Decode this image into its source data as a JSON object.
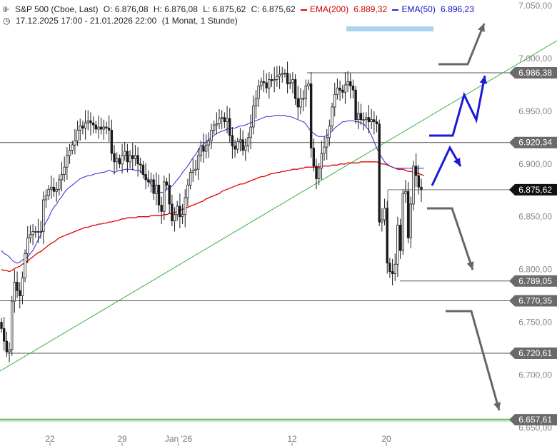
{
  "header": {
    "symbol": "S&P 500 (Cboe, Last)",
    "open": "O: 6.876,08",
    "high": "H: 6.876,08",
    "low": "L: 6.875,62",
    "close": "C: 6.875,62",
    "ema200_label": "EMA(200)",
    "ema200_value": "6.889,32",
    "ema50_label": "EMA(50)",
    "ema50_value": "6.896,23",
    "range": "17.12.2025 17:00 - 21.01.2026 22:00",
    "interval": "(1 Monat, 1 Stunde)"
  },
  "colors": {
    "candle": "#1a1a1a",
    "ema200": "#e00000",
    "ema50": "#2a2ad4",
    "trendline": "#3cb043",
    "level_line": "#555555",
    "arrow_blue": "#1a1ad8",
    "arrow_gray": "#666666",
    "tag_bg": "#6a6a6a",
    "current_tag_bg": "#111111",
    "support_green": "#4caf50",
    "marker_lightblue": "#a8d4f0"
  },
  "chart_data": {
    "type": "candlestick",
    "x_tick_labels": [
      "22",
      "29",
      "Jan '26",
      "12",
      "20"
    ],
    "y_ticks": [
      6650,
      6700,
      6750,
      6800,
      6850,
      6900,
      6950,
      7000,
      7050
    ],
    "y_tick_labels": [
      "6.650,00",
      "6.700,00",
      "6.750,00",
      "6.800,00",
      "6.850,00",
      "6.900,00",
      "6.950,00",
      "7.000,00",
      "7.050,00"
    ],
    "ylim": [
      6645,
      7058
    ],
    "levels": [
      {
        "value": 6986.38,
        "label": "6.986,38"
      },
      {
        "value": 6920.34,
        "label": "6.920,34"
      },
      {
        "value": 6789.05,
        "label": "6.789,05"
      },
      {
        "value": 6770.35,
        "label": "6.770,35"
      },
      {
        "value": 6720.61,
        "label": "6.720,61"
      },
      {
        "value": 6657.61,
        "label": "6.657,61"
      }
    ],
    "current_price": {
      "value": 6875.62,
      "label": "6.875,62"
    },
    "closes": [
      6744,
      6732,
      6722,
      6724,
      6770,
      6788,
      6780,
      6775,
      6792,
      6815,
      6830,
      6833,
      6836,
      6836,
      6836,
      6836,
      6866,
      6870,
      6876,
      6878,
      6874,
      6876,
      6885,
      6890,
      6897,
      6908,
      6913,
      6918,
      6922,
      6932,
      6936,
      6934,
      6939,
      6941,
      6939,
      6937,
      6933,
      6935,
      6933,
      6935,
      6934,
      6932,
      6910,
      6902,
      6905,
      6900,
      6908,
      6912,
      6902,
      6908,
      6905,
      6908,
      6900,
      6899,
      6890,
      6885,
      6883,
      6885,
      6872,
      6880,
      6861,
      6855,
      6883,
      6880,
      6862,
      6846,
      6852,
      6860,
      6850,
      6852,
      6868,
      6880,
      6892,
      6894,
      6895,
      6908,
      6917,
      6912,
      6918,
      6922,
      6932,
      6937,
      6938,
      6943,
      6944,
      6940,
      6943,
      6927,
      6917,
      6914,
      6921,
      6923,
      6913,
      6917,
      6925,
      6935,
      6955,
      6962,
      6974,
      6978,
      6977,
      6972,
      6980,
      6979,
      6980,
      6983,
      6985,
      6986,
      6986,
      6976,
      6977,
      6980,
      6962,
      6954,
      6962,
      6962,
      6974,
      6976,
      6915,
      6898,
      6886,
      6896,
      6910,
      6916,
      6925,
      6936,
      6954,
      6966,
      6972,
      6970,
      6968,
      6975,
      6978,
      6974,
      6970,
      6942,
      6948,
      6942,
      6942,
      6944,
      6940,
      6942,
      6940,
      6938,
      6845,
      6847,
      6858,
      6806,
      6798,
      6796,
      6805,
      6842,
      6818,
      6872,
      6874,
      6830,
      6862,
      6898,
      6889,
      6878,
      6876
    ],
    "ema200": [
      6800,
      6799,
      6799,
      6798,
      6799,
      6801,
      6802,
      6803,
      6805,
      6806,
      6808,
      6810,
      6812,
      6814,
      6816,
      6817,
      6819,
      6821,
      6823,
      6825,
      6826,
      6828,
      6830,
      6831,
      6832,
      6833,
      6834,
      6835,
      6836,
      6837,
      6838,
      6839,
      6840,
      6840,
      6841,
      6842,
      6842,
      6843,
      6843,
      6844,
      6844,
      6845,
      6845,
      6846,
      6846,
      6847,
      6848,
      6848,
      6849,
      6849,
      6849,
      6849,
      6850,
      6850,
      6850,
      6850,
      6850,
      6851,
      6851,
      6851,
      6851,
      6851,
      6852,
      6852,
      6853,
      6853,
      6854,
      6855,
      6856,
      6857,
      6858,
      6859,
      6860,
      6861,
      6862,
      6863,
      6864,
      6865,
      6867,
      6868,
      6869,
      6870,
      6871,
      6872,
      6874,
      6875,
      6876,
      6877,
      6878,
      6879,
      6880,
      6881,
      6881,
      6882,
      6883,
      6884,
      6885,
      6886,
      6887,
      6888,
      6888,
      6889,
      6890,
      6891,
      6891,
      6892,
      6892,
      6893,
      6893,
      6894,
      6894,
      6895,
      6895,
      6895,
      6896,
      6896,
      6897,
      6897,
      6897,
      6897,
      6897,
      6897,
      6898,
      6898,
      6898,
      6898,
      6899,
      6899,
      6899,
      6900,
      6900,
      6900,
      6901,
      6901,
      6901,
      6901,
      6901,
      6902,
      6902,
      6902,
      6902,
      6902,
      6902,
      6902,
      6901,
      6900,
      6900,
      6899,
      6898,
      6897,
      6896,
      6895,
      6895,
      6895,
      6894,
      6893,
      6893,
      6892,
      6892,
      6891,
      6890,
      6889
    ],
    "ema50": [
      6818,
      6815,
      6814,
      6812,
      6809,
      6807,
      6806,
      6807,
      6809,
      6810,
      6812,
      6815,
      6818,
      6823,
      6828,
      6833,
      6840,
      6845,
      6849,
      6855,
      6859,
      6862,
      6866,
      6869,
      6873,
      6876,
      6878,
      6880,
      6882,
      6884,
      6886,
      6887,
      6888,
      6889,
      6889,
      6890,
      6891,
      6891,
      6892,
      6892,
      6893,
      6894,
      6893,
      6892,
      6893,
      6894,
      6894,
      6895,
      6895,
      6895,
      6895,
      6894,
      6894,
      6893,
      6891,
      6888,
      6885,
      6880,
      6878,
      6875,
      6873,
      6873,
      6873,
      6876,
      6877,
      6879,
      6882,
      6885,
      6888,
      6892,
      6895,
      6898,
      6902,
      6906,
      6909,
      6913,
      6916,
      6919,
      6921,
      6923,
      6925,
      6927,
      6929,
      6930,
      6931,
      6932,
      6933,
      6934,
      6934,
      6934,
      6935,
      6936,
      6936,
      6937,
      6938,
      6939,
      6940,
      6941,
      6942,
      6943,
      6944,
      6945,
      6945,
      6945,
      6946,
      6946,
      6946,
      6946,
      6946,
      6945,
      6945,
      6944,
      6943,
      6942,
      6941,
      6940,
      6938,
      6934,
      6931,
      6929,
      6927,
      6926,
      6926,
      6926,
      6927,
      6929,
      6931,
      6934,
      6936,
      6938,
      6940,
      6940,
      6941,
      6941,
      6941,
      6940,
      6940,
      6939,
      6938,
      6935,
      6932,
      6927,
      6921,
      6915,
      6910,
      6906,
      6902,
      6900,
      6898,
      6897,
      6896,
      6896,
      6896,
      6896,
      6896,
      6896,
      6896,
      6896,
      6896,
      6896,
      6896,
      6896
    ]
  },
  "projection_note": ""
}
